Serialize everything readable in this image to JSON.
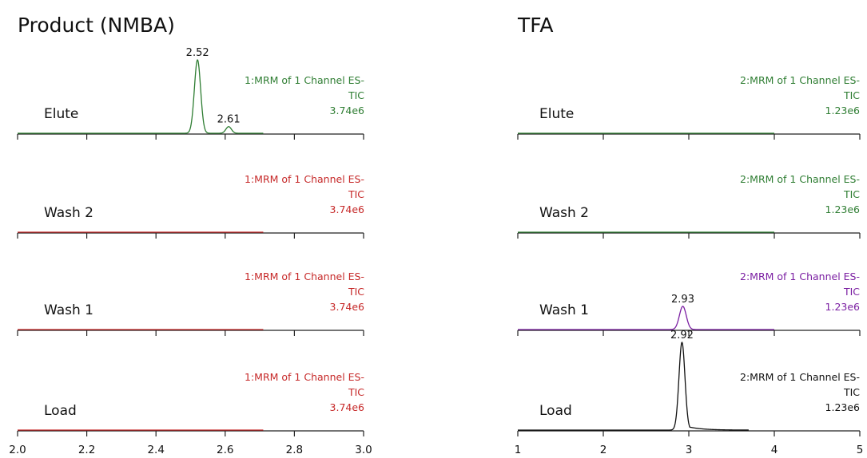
{
  "chart_data": [
    {
      "type": "line",
      "title": "Product (NMBA)",
      "xlim": [
        2.0,
        3.0
      ],
      "x_ticks": [
        "2.0",
        "2.2",
        "2.4",
        "2.6",
        "2.8",
        "3.0"
      ],
      "panels": [
        {
          "label": "Elute",
          "info": [
            "1:MRM of 1 Channel ES-",
            "TIC",
            "3.74e6"
          ],
          "color": "#2e7d32",
          "trace_end": 2.71,
          "peaks": [
            {
              "rt": 2.52,
              "label": "2.52",
              "height": 1.0,
              "width": 0.009
            },
            {
              "rt": 2.61,
              "label": "2.61",
              "height": 0.09,
              "width": 0.008
            }
          ]
        },
        {
          "label": "Wash 2",
          "info": [
            "1:MRM of 1 Channel ES-",
            "TIC",
            "3.74e6"
          ],
          "color": "#c62828",
          "trace_end": 2.71,
          "peaks": []
        },
        {
          "label": "Wash 1",
          "info": [
            "1:MRM of 1 Channel ES-",
            "TIC",
            "3.74e6"
          ],
          "color": "#c62828",
          "trace_end": 2.71,
          "peaks": []
        },
        {
          "label": "Load",
          "info": [
            "1:MRM of 1 Channel ES-",
            "TIC",
            "3.74e6"
          ],
          "color": "#c62828",
          "trace_end": 2.71,
          "peaks": []
        }
      ]
    },
    {
      "type": "line",
      "title": "TFA",
      "xlim": [
        1,
        5
      ],
      "x_ticks": [
        "1",
        "2",
        "3",
        "4",
        "5"
      ],
      "panels": [
        {
          "label": "Elute",
          "info": [
            "2:MRM of 1 Channel ES-",
            "TIC",
            "1.23e6"
          ],
          "color": "#2e7d32",
          "trace_end": 4.0,
          "peaks": []
        },
        {
          "label": "Wash 2",
          "info": [
            "2:MRM of 1 Channel ES-",
            "TIC",
            "1.23e6"
          ],
          "color": "#2e7d32",
          "trace_end": 4.0,
          "peaks": []
        },
        {
          "label": "Wash 1",
          "info": [
            "2:MRM of 1 Channel ES-",
            "TIC",
            "1.23e6"
          ],
          "color": "#7b1fa2",
          "trace_end": 4.0,
          "peaks": [
            {
              "rt": 2.93,
              "label": "2.93",
              "height": 0.28,
              "width": 0.04
            }
          ]
        },
        {
          "label": "Load",
          "info": [
            "2:MRM of 1 Channel ES-",
            "TIC",
            "1.23e6"
          ],
          "color": "#111111",
          "trace_end": 3.7,
          "peaks": [
            {
              "rt": 2.92,
              "label": "2.92",
              "height": 1.0,
              "width": 0.035,
              "tail": 0.16
            }
          ]
        }
      ]
    }
  ]
}
